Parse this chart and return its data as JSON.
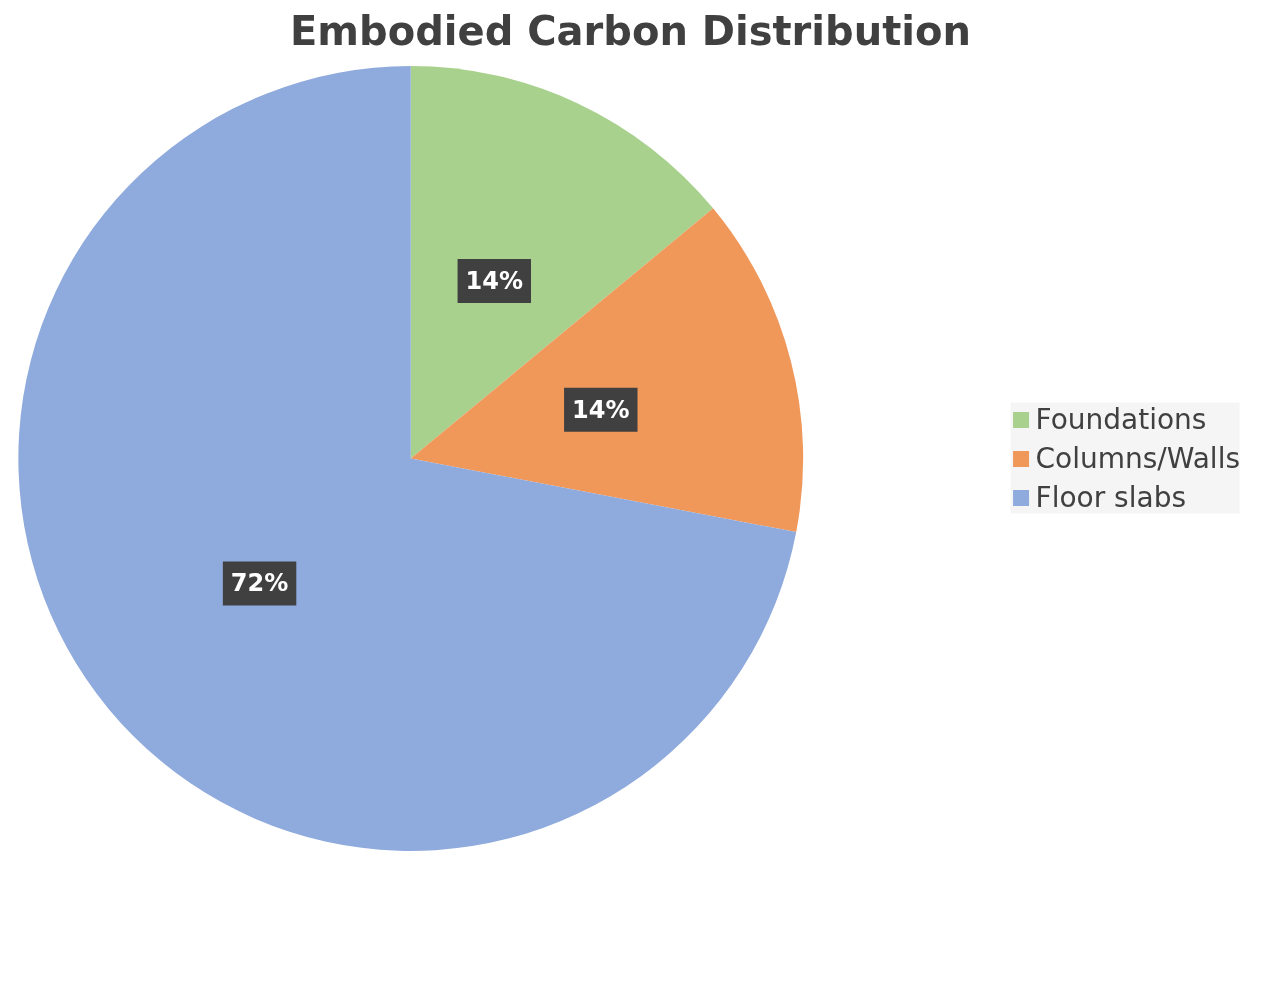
{
  "chart_data": {
    "type": "pie",
    "title": "Embodied Carbon Distribution",
    "categories": [
      "Foundations",
      "Columns/Walls",
      "Floor slabs"
    ],
    "values": [
      14,
      14,
      72
    ],
    "value_labels": [
      "14%",
      "14%",
      "72%"
    ],
    "colors": [
      "#a9d18e",
      "#f0975a",
      "#8faadc"
    ],
    "legend": "right"
  }
}
